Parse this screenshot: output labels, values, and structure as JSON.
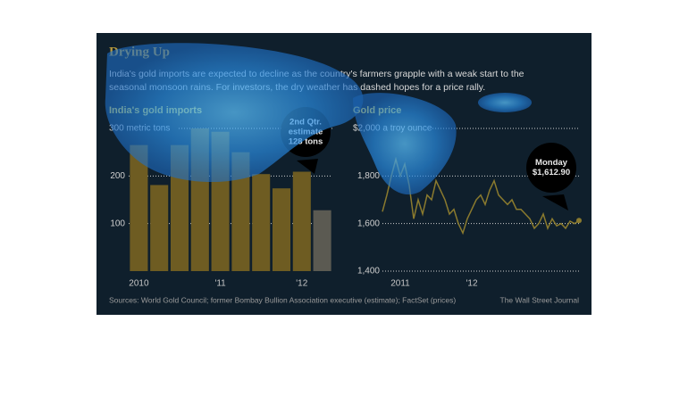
{
  "title": "Drying Up",
  "subtitle": [
    "India's gold imports are expected to decline as the country's farmers grapple with a weak start to the",
    "seasonal monsoon rains. For investors, the dry weather has dashed hopes for a price rally."
  ],
  "sources": "Sources: World Gold Council; former Bombay Bullion Association executive (estimate); FactSet (prices)",
  "credit": "The Wall Street Journal",
  "chart_data": [
    {
      "type": "bar",
      "title": "India's gold imports",
      "categories": [
        "2010",
        null,
        null,
        null,
        "'11",
        null,
        null,
        null,
        "'12",
        null
      ],
      "values": [
        265,
        181,
        265,
        300,
        293,
        250,
        204,
        174,
        209,
        128
      ],
      "colors": [
        "#6e5c22",
        "#6e5c22",
        "#6e5c22",
        "#6e5c22",
        "#6e5c22",
        "#6e5c22",
        "#6e5c22",
        "#6e5c22",
        "#6e5c22",
        "#5b5a52"
      ],
      "ylim": [
        0,
        300
      ],
      "yticks": [
        100,
        200,
        {
          "value": 300,
          "label": "300 metric tons"
        }
      ],
      "grid": true,
      "annotation": [
        "2nd Qtr.",
        "estimate",
        "128 tons"
      ]
    },
    {
      "type": "line",
      "title": "Gold price",
      "categories": [
        null,
        null,
        null,
        null,
        "2011",
        null,
        null,
        null,
        null,
        null,
        null,
        null,
        null,
        null,
        null,
        null,
        null,
        null,
        null,
        null,
        "'12",
        null,
        null,
        null,
        null,
        null,
        null,
        null,
        null,
        null,
        null,
        null,
        null,
        null,
        null,
        null,
        null,
        null,
        null,
        null,
        null,
        null,
        null,
        null,
        null
      ],
      "series": [
        {
          "name": "Gold price",
          "color": "#8a7a2e",
          "values": [
            1650,
            1720,
            1800,
            1870,
            1800,
            1850,
            1760,
            1620,
            1700,
            1640,
            1720,
            1700,
            1780,
            1740,
            1700,
            1640,
            1660,
            1600,
            1560,
            1620,
            1660,
            1700,
            1720,
            1680,
            1740,
            1780,
            1720,
            1700,
            1680,
            1700,
            1660,
            1660,
            1640,
            1620,
            1580,
            1600,
            1640,
            1580,
            1620,
            1590,
            1600,
            1580,
            1610,
            1600,
            1612.9
          ]
        }
      ],
      "ylim": [
        1400,
        2000
      ],
      "yticks": [
        {
          "value": 1400,
          "label": "1,400"
        },
        {
          "value": 1600,
          "label": "1,600"
        },
        {
          "value": 1800,
          "label": "1,800"
        },
        {
          "value": 2000,
          "label": "$2,000 a troy ounce"
        }
      ],
      "grid": true,
      "annotation": [
        "Monday",
        "$1,612.90"
      ]
    }
  ]
}
